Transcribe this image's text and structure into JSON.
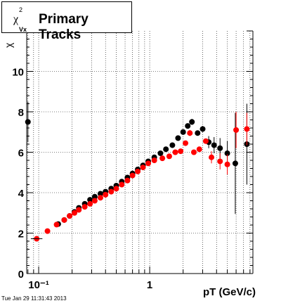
{
  "title": {
    "symbol": "χ",
    "superscript": "2",
    "subscript": "Vx",
    "text": "Primary Tracks"
  },
  "timestamp": "Tue Jan 29 11:31:43 2013",
  "chart_data": {
    "type": "scatter",
    "title": "Primary Tracks",
    "xlabel": "pT (GeV/c)",
    "ylabel": "χ²_Vx",
    "x_scale": "log",
    "xlim": [
      0.078,
      8.5
    ],
    "ylim": [
      0,
      12
    ],
    "x_tick_labels": [
      "10⁻¹",
      "1"
    ],
    "y_tick_labels": [
      "0",
      "2",
      "4",
      "6",
      "8",
      "10"
    ],
    "y_ticks": [
      0,
      2,
      4,
      6,
      8,
      10
    ],
    "grid": true,
    "series": [
      {
        "color": "#000000",
        "points": [
          [
            0.08,
            7.5
          ],
          [
            0.15,
            2.45
          ],
          [
            0.17,
            2.65
          ],
          [
            0.19,
            2.85
          ],
          [
            0.21,
            3.05
          ],
          [
            0.23,
            3.25
          ],
          [
            0.26,
            3.45
          ],
          [
            0.29,
            3.65
          ],
          [
            0.32,
            3.8
          ],
          [
            0.36,
            3.95
          ],
          [
            0.4,
            4.05
          ],
          [
            0.45,
            4.2
          ],
          [
            0.5,
            4.35
          ],
          [
            0.56,
            4.55
          ],
          [
            0.63,
            4.75
          ],
          [
            0.7,
            4.95
          ],
          [
            0.78,
            5.15
          ],
          [
            0.87,
            5.35
          ],
          [
            0.97,
            5.55
          ],
          [
            1.1,
            5.75
          ],
          [
            1.25,
            5.95
          ],
          [
            1.4,
            6.15
          ],
          [
            1.6,
            6.35
          ],
          [
            1.8,
            6.7
          ],
          [
            2.0,
            7.0
          ],
          [
            2.2,
            7.3
          ],
          [
            2.4,
            7.5
          ],
          [
            2.7,
            6.95
          ],
          [
            3.0,
            7.15
          ],
          [
            3.4,
            6.5
          ],
          [
            3.8,
            6.35
          ],
          [
            4.3,
            6.2
          ],
          [
            5.0,
            5.95
          ],
          [
            5.9,
            5.45
          ],
          [
            7.5,
            6.4
          ]
        ],
        "errors": [
          [
            0.08,
            1.0
          ],
          [
            2.4,
            0.15
          ],
          [
            3.0,
            0.15
          ],
          [
            3.4,
            0.3
          ],
          [
            3.8,
            0.4
          ],
          [
            4.3,
            0.5
          ],
          [
            5.0,
            0.6
          ],
          [
            5.9,
            2.5
          ],
          [
            7.5,
            2.0
          ]
        ]
      },
      {
        "color": "#ff0000",
        "points": [
          [
            0.096,
            1.72
          ],
          [
            0.12,
            2.1
          ],
          [
            0.145,
            2.42
          ],
          [
            0.17,
            2.65
          ],
          [
            0.19,
            2.85
          ],
          [
            0.21,
            3.0
          ],
          [
            0.23,
            3.15
          ],
          [
            0.26,
            3.3
          ],
          [
            0.29,
            3.45
          ],
          [
            0.32,
            3.6
          ],
          [
            0.36,
            3.75
          ],
          [
            0.4,
            3.9
          ],
          [
            0.45,
            4.05
          ],
          [
            0.5,
            4.2
          ],
          [
            0.56,
            4.4
          ],
          [
            0.63,
            4.6
          ],
          [
            0.7,
            4.85
          ],
          [
            0.78,
            5.05
          ],
          [
            0.87,
            5.25
          ],
          [
            0.97,
            5.45
          ],
          [
            1.1,
            5.6
          ],
          [
            1.3,
            5.7
          ],
          [
            1.5,
            5.8
          ],
          [
            1.7,
            6.0
          ],
          [
            1.9,
            6.05
          ],
          [
            2.1,
            6.45
          ],
          [
            2.3,
            6.95
          ],
          [
            2.5,
            6.0
          ],
          [
            2.8,
            6.15
          ],
          [
            3.2,
            6.55
          ],
          [
            3.6,
            5.75
          ],
          [
            4.3,
            5.55
          ],
          [
            5.0,
            5.4
          ],
          [
            6.0,
            7.1
          ],
          [
            7.5,
            7.15
          ]
        ],
        "errors": [
          [
            0.096,
            0.05
          ],
          [
            2.3,
            0.15
          ],
          [
            3.6,
            0.3
          ],
          [
            4.3,
            0.4
          ],
          [
            5.0,
            0.5
          ],
          [
            6.0,
            0.9
          ],
          [
            7.5,
            0.8
          ]
        ]
      }
    ]
  }
}
